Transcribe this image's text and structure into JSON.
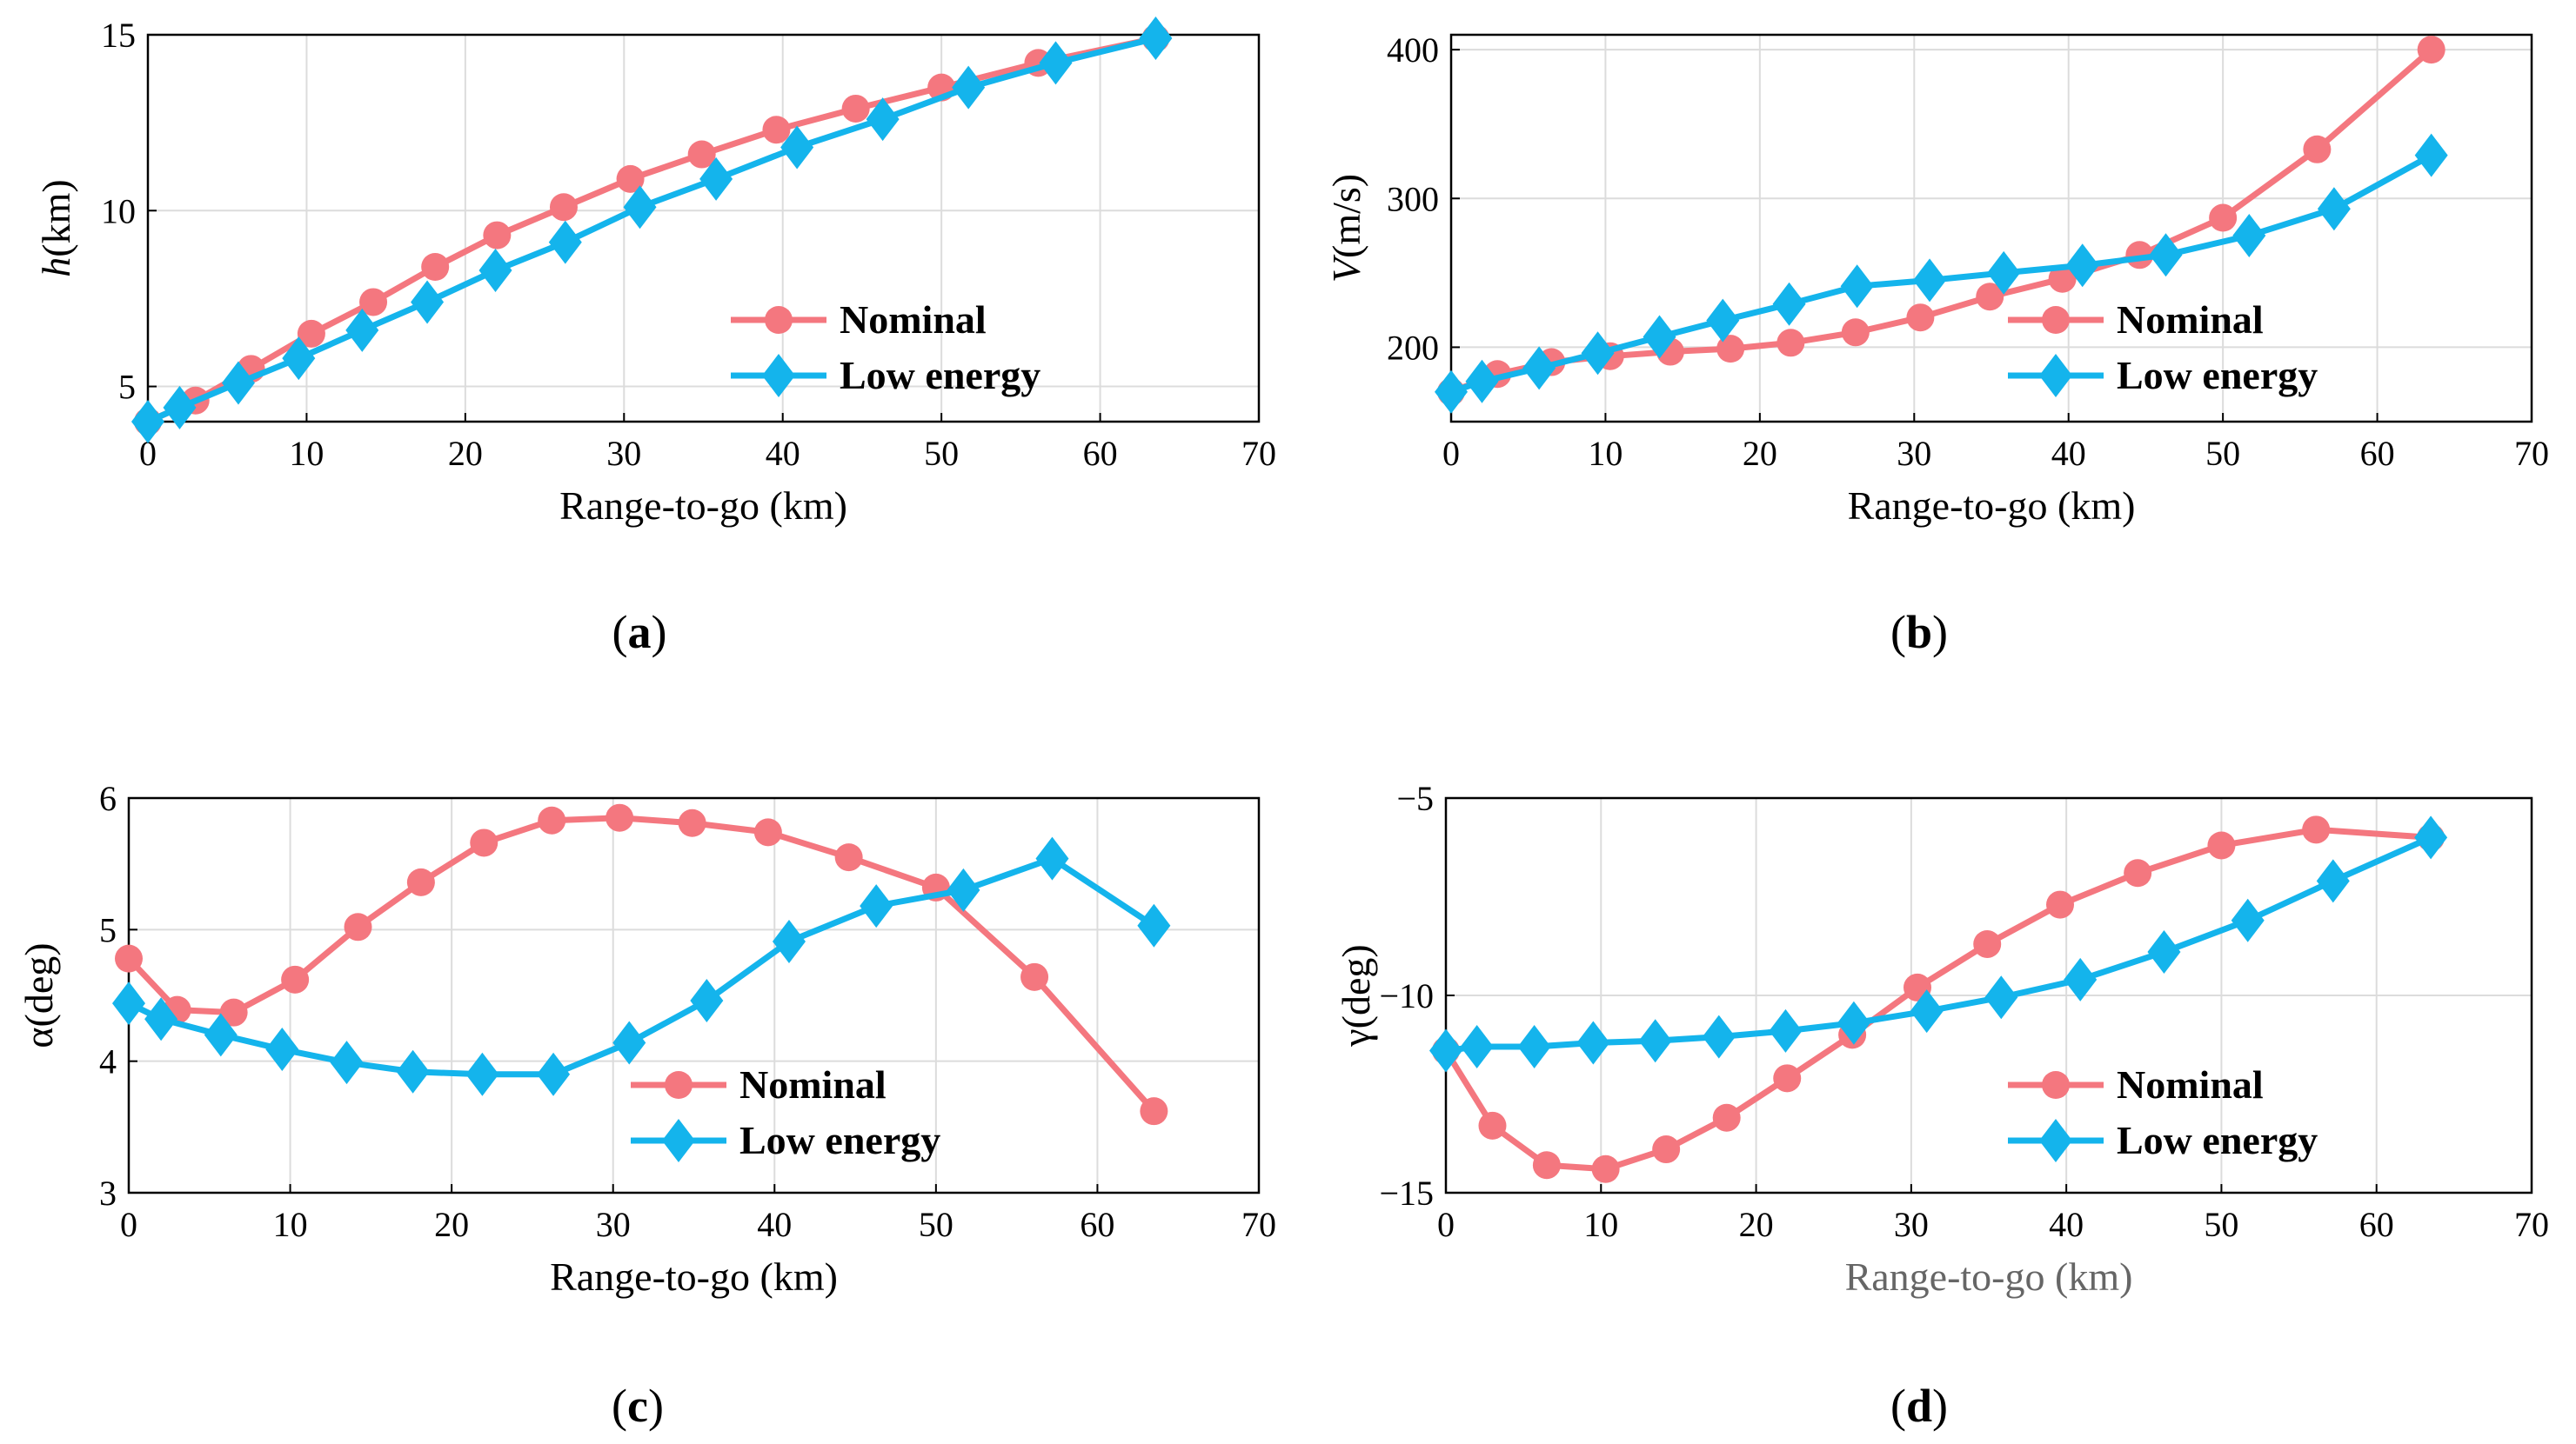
{
  "colors": {
    "nominal": "#f4777f",
    "low_energy": "#14b4ec"
  },
  "chart_data": [
    {
      "id": "a",
      "type": "line",
      "caption_label": "a",
      "ylabel_var": "h",
      "ylabel_unit": "(km)",
      "xlabel": "Range-to-go (km)",
      "xlim": [
        0,
        70
      ],
      "ylim": [
        4,
        15
      ],
      "xticks": [
        0,
        10,
        20,
        30,
        40,
        50,
        60,
        70
      ],
      "yticks": [
        5,
        10,
        15
      ],
      "legend_position": "bottom-right",
      "series": [
        {
          "name": "Nominal",
          "marker": "circle",
          "x": [
            0,
            3,
            6.5,
            10.3,
            14.2,
            18.1,
            22,
            26.2,
            30.4,
            34.9,
            39.6,
            44.6,
            50,
            56.1,
            63.5
          ],
          "y": [
            4,
            4.6,
            5.5,
            6.5,
            7.4,
            8.4,
            9.3,
            10.1,
            10.9,
            11.6,
            12.3,
            12.9,
            13.5,
            14.2,
            14.9
          ]
        },
        {
          "name": "Low energy",
          "marker": "diamond",
          "x": [
            0,
            2,
            5.7,
            9.5,
            13.5,
            17.6,
            21.9,
            26.3,
            31,
            35.8,
            40.9,
            46.3,
            51.7,
            57.2,
            63.5
          ],
          "y": [
            4,
            4.4,
            5.1,
            5.8,
            6.6,
            7.4,
            8.3,
            9.1,
            10.1,
            10.9,
            11.8,
            12.6,
            13.5,
            14.2,
            14.9
          ]
        }
      ]
    },
    {
      "id": "b",
      "type": "line",
      "caption_label": "b",
      "ylabel_var": "V",
      "ylabel_unit": "(m/s)",
      "xlabel": "Range-to-go (km)",
      "xlim": [
        0,
        70
      ],
      "ylim": [
        150,
        410
      ],
      "xticks": [
        0,
        10,
        20,
        30,
        40,
        50,
        60,
        70
      ],
      "yticks": [
        200,
        300,
        400
      ],
      "legend_position": "bottom-right",
      "series": [
        {
          "name": "Nominal",
          "marker": "circle",
          "x": [
            0,
            3,
            6.5,
            10.3,
            14.2,
            18.1,
            22,
            26.2,
            30.4,
            34.9,
            39.6,
            44.6,
            50,
            56.1,
            63.5
          ],
          "y": [
            170,
            182,
            190,
            194,
            197,
            199,
            203,
            210,
            220,
            234,
            246,
            262,
            287,
            333,
            400
          ]
        },
        {
          "name": "Low energy",
          "marker": "diamond",
          "x": [
            0,
            2,
            5.7,
            9.5,
            13.5,
            17.6,
            21.9,
            26.3,
            31,
            35.8,
            40.9,
            46.3,
            51.7,
            57.2,
            63.5
          ],
          "y": [
            170,
            177,
            186,
            196,
            207,
            218,
            229,
            241,
            245,
            250,
            255,
            262,
            275,
            293,
            329
          ]
        }
      ]
    },
    {
      "id": "c",
      "type": "line",
      "caption_label": "c",
      "ylabel_var": "α",
      "ylabel_unit": "(deg)",
      "xlabel": "Range-to-go (km)",
      "xlim": [
        0,
        70
      ],
      "ylim": [
        3,
        6
      ],
      "xticks": [
        0,
        10,
        20,
        30,
        40,
        50,
        60,
        70
      ],
      "yticks": [
        3,
        4,
        5,
        6
      ],
      "legend_position": "bottom-right",
      "series": [
        {
          "name": "Nominal",
          "marker": "circle",
          "x": [
            0,
            3,
            6.5,
            10.3,
            14.2,
            18.1,
            22,
            26.2,
            30.4,
            34.9,
            39.6,
            44.6,
            50,
            56.1,
            63.5
          ],
          "y": [
            4.78,
            4.39,
            4.37,
            4.62,
            5.02,
            5.36,
            5.66,
            5.83,
            5.85,
            5.81,
            5.74,
            5.55,
            5.32,
            4.64,
            3.62
          ]
        },
        {
          "name": "Low energy",
          "marker": "diamond",
          "x": [
            0,
            2,
            5.7,
            9.5,
            13.5,
            17.6,
            21.9,
            26.3,
            31,
            35.8,
            40.9,
            46.3,
            51.7,
            57.2,
            63.5
          ],
          "y": [
            4.44,
            4.32,
            4.2,
            4.09,
            3.99,
            3.92,
            3.9,
            3.9,
            4.14,
            4.46,
            4.91,
            5.18,
            5.3,
            5.54,
            5.03
          ]
        }
      ]
    },
    {
      "id": "d",
      "type": "line",
      "caption_label": "d",
      "ylabel_var": "γ",
      "ylabel_unit": "(deg)",
      "xlabel": "Range-to-go (km)",
      "xlim": [
        0,
        70
      ],
      "ylim": [
        -15,
        -5
      ],
      "xticks": [
        0,
        10,
        20,
        30,
        40,
        50,
        60,
        70
      ],
      "yticks": [
        -15,
        -10,
        -5
      ],
      "legend_position": "bottom-right",
      "series": [
        {
          "name": "Nominal",
          "marker": "circle",
          "x": [
            0,
            3,
            6.5,
            10.3,
            14.2,
            18.1,
            22,
            26.2,
            30.4,
            34.9,
            39.6,
            44.6,
            50,
            56.1,
            63.5
          ],
          "y": [
            -11.4,
            -13.3,
            -14.3,
            -14.4,
            -13.9,
            -13.1,
            -12.1,
            -11,
            -9.8,
            -8.7,
            -7.7,
            -6.9,
            -6.2,
            -5.8,
            -6
          ]
        },
        {
          "name": "Low energy",
          "marker": "diamond",
          "x": [
            0,
            2,
            5.7,
            9.5,
            13.5,
            17.6,
            21.9,
            26.3,
            31,
            35.8,
            40.9,
            46.3,
            51.7,
            57.2,
            63.5
          ],
          "y": [
            -11.4,
            -11.3,
            -11.3,
            -11.2,
            -11.15,
            -11.05,
            -10.9,
            -10.7,
            -10.4,
            -10.05,
            -9.6,
            -8.9,
            -8.1,
            -7.1,
            -6
          ]
        }
      ]
    }
  ]
}
